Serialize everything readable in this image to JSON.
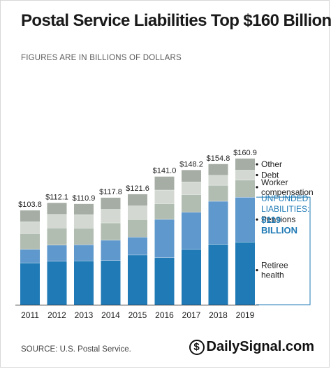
{
  "title": "Postal Service Liabilities Top $160 Billion",
  "subtitle": "FIGURES ARE IN BILLIONS OF DOLLARS",
  "source": "SOURCE: U.S. Postal Service.",
  "brand": {
    "symbol": "$",
    "name": "DailySignal.com"
  },
  "colors": {
    "retiree_health": "#1f7ab5",
    "pensions": "#5f98cc",
    "worker_compensation": "#b2bdb1",
    "debt": "#d3d9d2",
    "other": "#a5ada4",
    "annotation": "#1f7ab5",
    "axis": "#333333"
  },
  "annotation": {
    "line1": "UNFUNDED",
    "line2": "LIABILITIES:",
    "line3": "$119",
    "line4": "BILLION"
  },
  "chart_data": {
    "type": "bar",
    "stacked": true,
    "title": "Postal Service Liabilities Top $160 Billion",
    "subtitle": "FIGURES ARE IN BILLIONS OF DOLLARS",
    "categories": [
      "2011",
      "2012",
      "2013",
      "2014",
      "2015",
      "2016",
      "2017",
      "2018",
      "2019"
    ],
    "totals": [
      103.8,
      112.1,
      110.9,
      117.8,
      121.6,
      141.0,
      148.2,
      154.8,
      160.9
    ],
    "total_labels": [
      "$103.8",
      "$112.1",
      "$110.9",
      "$117.8",
      "$121.6",
      "$141.0",
      "$148.2",
      "$154.8",
      "$160.9"
    ],
    "series": [
      {
        "name": "Retiree health",
        "label_lines": [
          "Retiree",
          "health"
        ],
        "values": [
          46.2,
          47.9,
          48.3,
          48.8,
          54.8,
          51.8,
          61.1,
          66.6,
          69.1
        ]
      },
      {
        "name": "Pensions",
        "label_lines": [
          "Pensions"
        ],
        "values": [
          14.9,
          17.8,
          17.8,
          22.4,
          19.7,
          42.3,
          40.8,
          47.4,
          49.3
        ]
      },
      {
        "name": "Worker compensation",
        "label_lines": [
          "Worker",
          "compensation"
        ],
        "values": [
          17.3,
          18.9,
          18.2,
          18.9,
          19.4,
          17.2,
          19.4,
          17.6,
          18.8
        ]
      },
      {
        "name": "Debt",
        "label_lines": [
          "Debt"
        ],
        "values": [
          13.0,
          15.0,
          15.0,
          15.0,
          15.0,
          15.0,
          14.0,
          11.0,
          11.0
        ]
      },
      {
        "name": "Other",
        "label_lines": [
          "Other"
        ],
        "values": [
          12.4,
          12.5,
          11.6,
          12.7,
          12.7,
          14.7,
          12.9,
          12.2,
          12.7
        ]
      }
    ],
    "ylim": [
      0,
      170
    ],
    "grid": false,
    "legend": "right"
  }
}
